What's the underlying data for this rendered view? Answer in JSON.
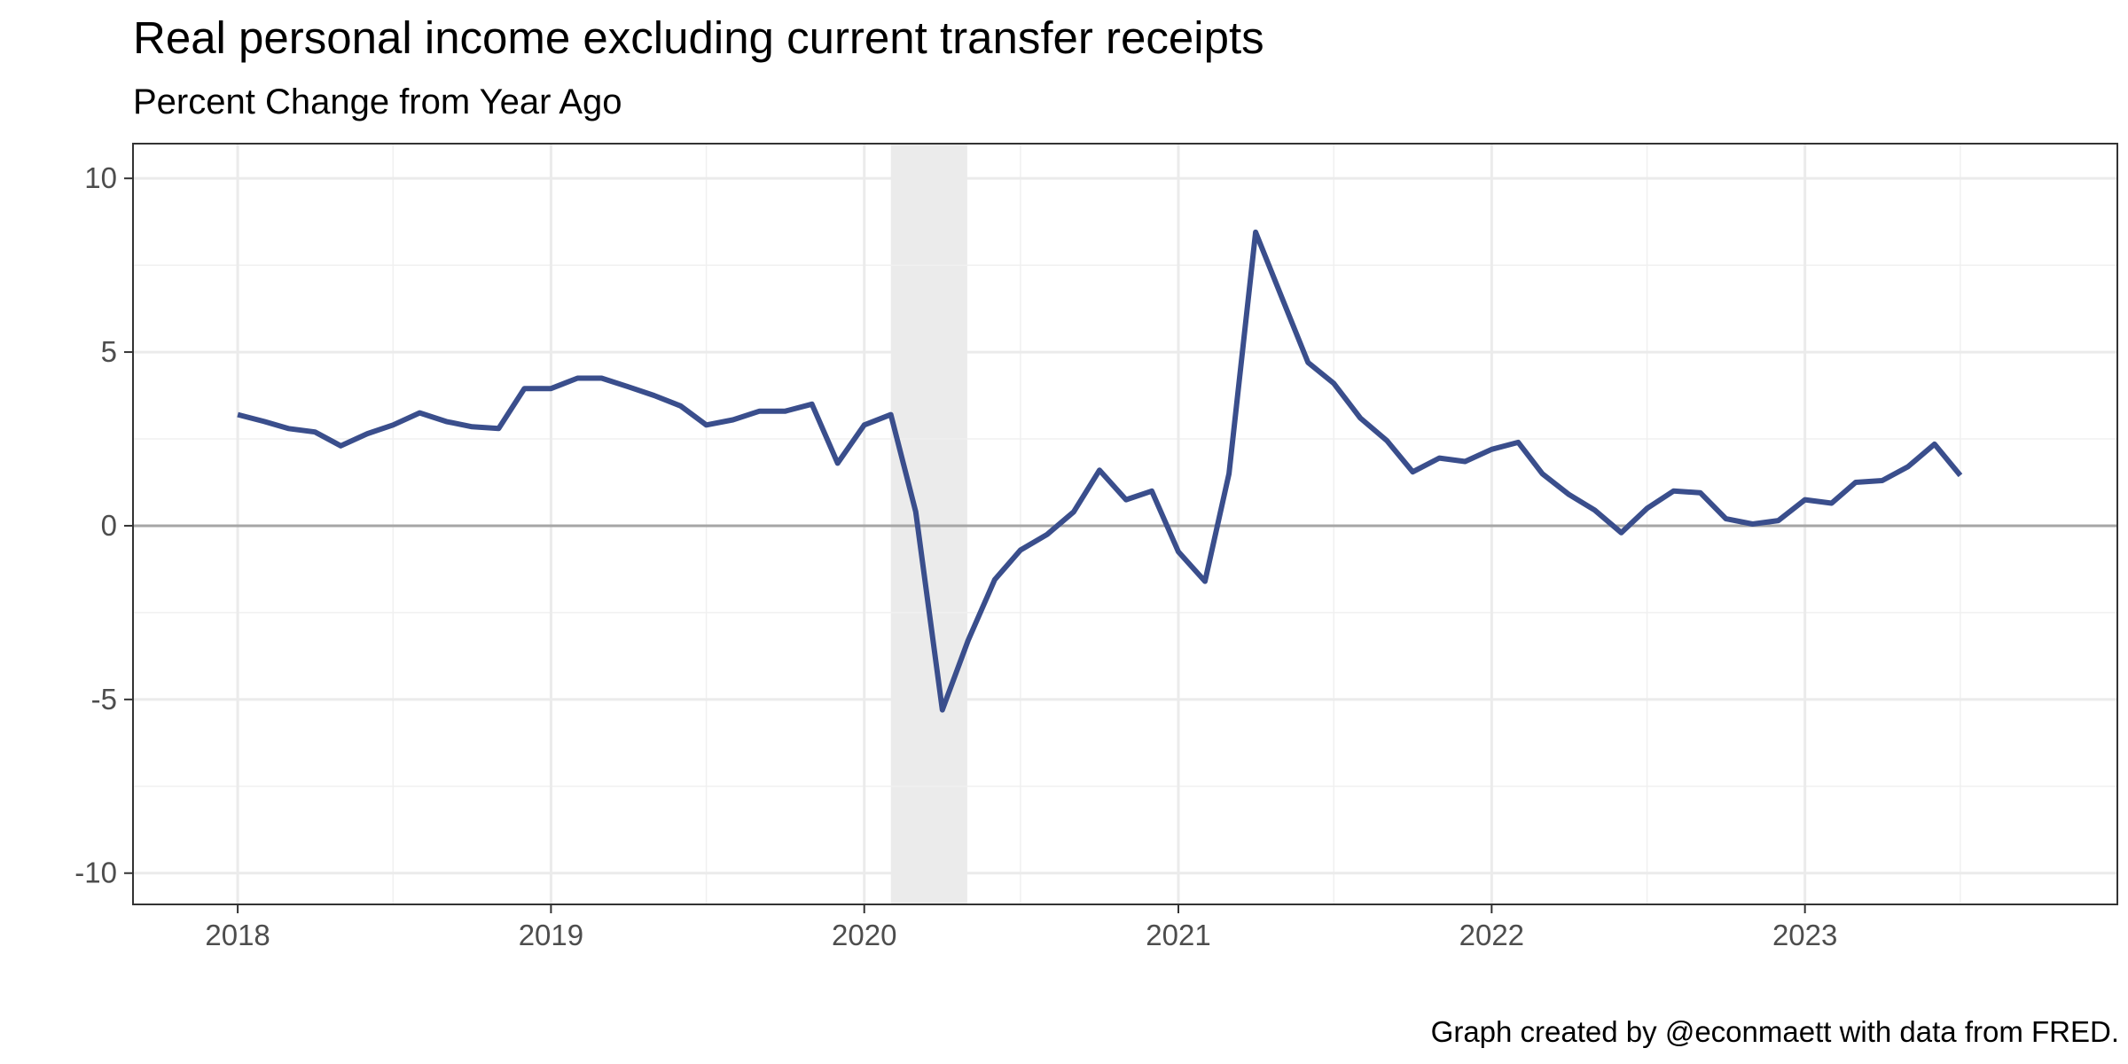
{
  "chart_data": {
    "type": "line",
    "title": "Real personal income excluding current transfer receipts",
    "subtitle": "Percent Change from Year Ago",
    "caption": "Graph created by @econmaett with data from FRED.",
    "xlabel": "",
    "ylabel": "",
    "x_tick_labels": [
      "2018",
      "2019",
      "2020",
      "2021",
      "2022",
      "2023"
    ],
    "y_ticks": [
      10,
      5,
      0,
      -5,
      -10
    ],
    "y_tick_labels": [
      "10",
      "5",
      "0",
      "-5",
      "-10"
    ],
    "xlim": [
      "2017-09-01",
      "2023-12-31"
    ],
    "ylim": [
      -10.9,
      11
    ],
    "grid": true,
    "zero_line": true,
    "recession": {
      "start": "2020-02-01",
      "end": "2020-04-30"
    },
    "series": [
      {
        "color": "#3a4e8c",
        "x": [
          "2018-01-01",
          "2018-02-01",
          "2018-03-01",
          "2018-04-01",
          "2018-05-01",
          "2018-06-01",
          "2018-07-01",
          "2018-08-01",
          "2018-09-01",
          "2018-10-01",
          "2018-11-01",
          "2018-12-01",
          "2019-01-01",
          "2019-02-01",
          "2019-03-01",
          "2019-04-01",
          "2019-05-01",
          "2019-06-01",
          "2019-07-01",
          "2019-08-01",
          "2019-09-01",
          "2019-10-01",
          "2019-11-01",
          "2019-12-01",
          "2020-01-01",
          "2020-02-01",
          "2020-03-01",
          "2020-04-01",
          "2020-05-01",
          "2020-06-01",
          "2020-07-01",
          "2020-08-01",
          "2020-09-01",
          "2020-10-01",
          "2020-11-01",
          "2020-12-01",
          "2021-01-01",
          "2021-02-01",
          "2021-03-01",
          "2021-04-01",
          "2021-05-01",
          "2021-06-01",
          "2021-07-01",
          "2021-08-01",
          "2021-09-01",
          "2021-10-01",
          "2021-11-01",
          "2021-12-01",
          "2022-01-01",
          "2022-02-01",
          "2022-03-01",
          "2022-04-01",
          "2022-05-01",
          "2022-06-01",
          "2022-07-01",
          "2022-08-01",
          "2022-09-01",
          "2022-10-01",
          "2022-11-01",
          "2022-12-01",
          "2023-01-01",
          "2023-02-01",
          "2023-03-01",
          "2023-04-01",
          "2023-05-01",
          "2023-06-01",
          "2023-07-01"
        ],
        "y": [
          3.2,
          3.0,
          2.8,
          2.7,
          2.3,
          2.65,
          2.9,
          3.25,
          3.0,
          2.85,
          2.8,
          3.95,
          3.95,
          4.25,
          4.25,
          4.0,
          3.75,
          3.45,
          2.9,
          3.05,
          3.3,
          3.3,
          3.5,
          1.8,
          2.9,
          3.2,
          0.4,
          -5.3,
          -3.3,
          -1.55,
          -0.7,
          -0.25,
          0.4,
          1.6,
          0.75,
          1.0,
          -0.75,
          -1.6,
          1.5,
          8.45,
          6.6,
          4.7,
          4.1,
          3.1,
          2.45,
          1.55,
          1.95,
          1.85,
          2.2,
          2.4,
          1.5,
          0.9,
          0.45,
          -0.2,
          0.5,
          1.0,
          0.95,
          0.2,
          0.05,
          0.15,
          0.75,
          0.65,
          1.25,
          1.3,
          1.7,
          2.35,
          1.45
        ]
      }
    ]
  }
}
